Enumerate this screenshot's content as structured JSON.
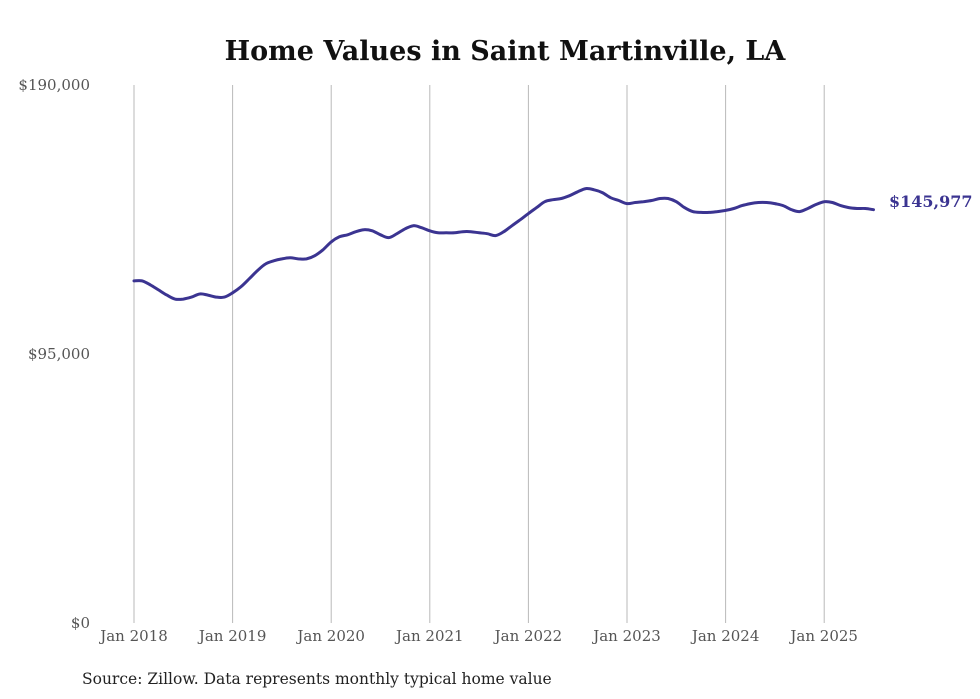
{
  "chart_data": {
    "type": "line",
    "title": "Home Values in Saint Martinville, LA",
    "xlabel": "",
    "ylabel": "",
    "ylim": [
      0,
      190000
    ],
    "y_ticks": [
      {
        "value": 0,
        "label": "$0"
      },
      {
        "value": 95000,
        "label": "$95,000"
      },
      {
        "value": 190000,
        "label": "$190,000"
      }
    ],
    "x_ticks": [
      {
        "value": 2018.0,
        "label": "Jan 2018"
      },
      {
        "value": 2019.0,
        "label": "Jan 2019"
      },
      {
        "value": 2020.0,
        "label": "Jan 2020"
      },
      {
        "value": 2021.0,
        "label": "Jan 2021"
      },
      {
        "value": 2022.0,
        "label": "Jan 2022"
      },
      {
        "value": 2023.0,
        "label": "Jan 2023"
      },
      {
        "value": 2024.0,
        "label": "Jan 2024"
      },
      {
        "value": 2025.0,
        "label": "Jan 2025"
      }
    ],
    "xlim": [
      2018.0,
      2025.5
    ],
    "grid": "vertical",
    "line_color": "#3b3491",
    "series": [
      {
        "name": "Typical home value",
        "start": "Jan 2018",
        "frequency": "monthly",
        "values": [
          120800,
          120800,
          119400,
          117600,
          115800,
          114400,
          114400,
          115100,
          116200,
          115800,
          115100,
          115100,
          116600,
          118700,
          121500,
          124400,
          126800,
          127900,
          128600,
          129000,
          128600,
          128600,
          129700,
          131800,
          134600,
          136400,
          137100,
          138200,
          138900,
          138500,
          137100,
          136100,
          137500,
          139200,
          140300,
          139600,
          138500,
          137800,
          137800,
          137800,
          138200,
          138200,
          137800,
          137500,
          136800,
          138200,
          140300,
          142400,
          144600,
          146700,
          148800,
          149500,
          149900,
          150900,
          152300,
          153400,
          153000,
          152000,
          150200,
          149200,
          148100,
          148500,
          148800,
          149200,
          149900,
          149900,
          148800,
          146700,
          145300,
          145000,
          145000,
          145300,
          145700,
          146400,
          147400,
          148100,
          148500,
          148500,
          148100,
          147400,
          146000,
          145300,
          146400,
          147800,
          148800,
          148500,
          147400,
          146700,
          146400,
          146400,
          145977
        ]
      }
    ],
    "end_label": "$145,977",
    "source": "Source: Zillow. Data represents monthly typical home value"
  }
}
